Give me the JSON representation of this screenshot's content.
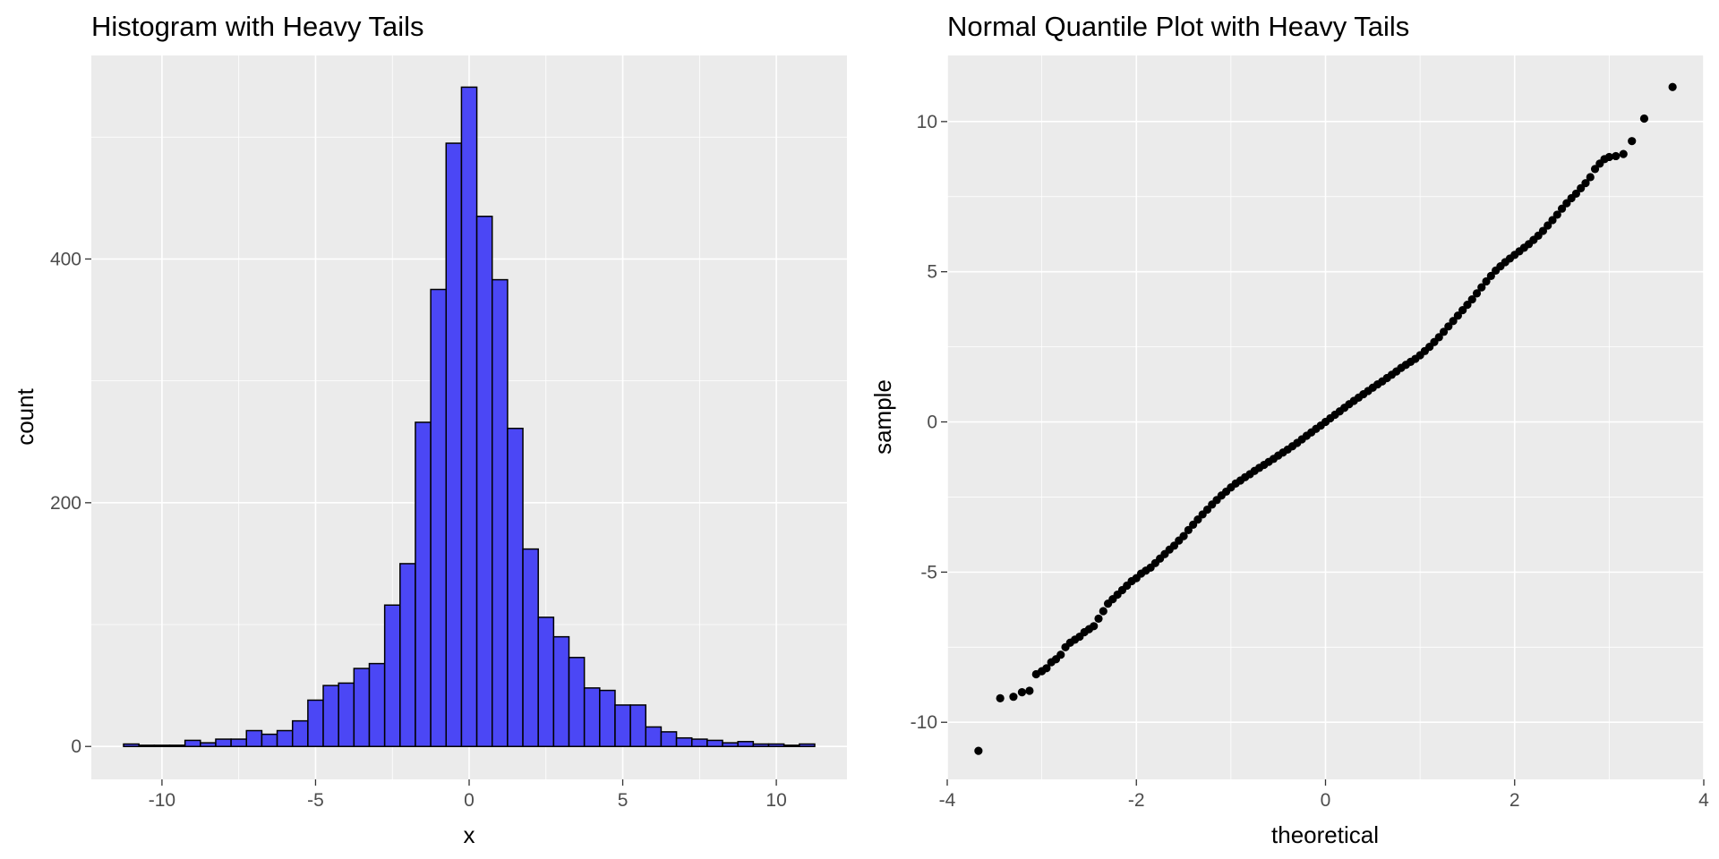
{
  "chart_data": [
    {
      "type": "bar",
      "title": "Histogram with Heavy Tails",
      "xlabel": "x",
      "ylabel": "count",
      "xlim": [
        -12.3,
        12.3
      ],
      "ylim": [
        -27,
        567
      ],
      "x_ticks": [
        -10,
        -5,
        0,
        5,
        10
      ],
      "y_ticks": [
        0,
        200,
        400
      ],
      "grid": true,
      "bar_fill": "#4b47f5",
      "bar_outline": "#000000",
      "bin_width": 0.5,
      "bin_centers": [
        -11,
        -10.5,
        -10,
        -9.5,
        -9,
        -8.5,
        -8,
        -7.5,
        -7,
        -6.5,
        -6,
        -5.5,
        -5,
        -4.5,
        -4,
        -3.5,
        -3,
        -2.5,
        -2,
        -1.5,
        -1,
        -0.5,
        0,
        0.5,
        1,
        1.5,
        2,
        2.5,
        3,
        3.5,
        4,
        4.5,
        5,
        5.5,
        6,
        6.5,
        7,
        7.5,
        8,
        8.5,
        9,
        9.5,
        10,
        10.5,
        11
      ],
      "values": [
        2,
        1,
        1,
        1,
        5,
        3,
        6,
        6,
        13,
        10,
        13,
        21,
        38,
        50,
        52,
        64,
        68,
        116,
        150,
        266,
        375,
        495,
        541,
        435,
        383,
        261,
        162,
        106,
        90,
        73,
        48,
        46,
        34,
        34,
        16,
        12,
        7,
        6,
        5,
        3,
        4,
        2,
        2,
        1,
        2
      ]
    },
    {
      "type": "scatter",
      "title": "Normal Quantile Plot with Heavy Tails",
      "xlabel": "theoretical",
      "ylabel": "sample",
      "xlim": [
        -4,
        4
      ],
      "ylim": [
        -11.9,
        12.2
      ],
      "x_ticks": [
        -4,
        -2,
        0,
        2,
        4
      ],
      "y_ticks": [
        -10,
        -5,
        0,
        5,
        10
      ],
      "grid": true,
      "point_color": "#000000",
      "points": [
        [
          -3.67,
          -10.95
        ],
        [
          -3.44,
          -9.2
        ],
        [
          -3.3,
          -9.15
        ],
        [
          -3.21,
          -9.0
        ],
        [
          -3.13,
          -8.95
        ],
        [
          -3.06,
          -8.4
        ],
        [
          -3.0,
          -8.3
        ],
        [
          -2.95,
          -8.2
        ],
        [
          -2.9,
          -8.0
        ],
        [
          -2.85,
          -7.9
        ],
        [
          -2.8,
          -7.75
        ],
        [
          -2.75,
          -7.5
        ],
        [
          -2.7,
          -7.35
        ],
        [
          -2.65,
          -7.25
        ],
        [
          -2.6,
          -7.15
        ],
        [
          -2.55,
          -7.0
        ],
        [
          -2.5,
          -6.9
        ],
        [
          -2.45,
          -6.8
        ],
        [
          -2.4,
          -6.55
        ],
        [
          -2.35,
          -6.3
        ],
        [
          -2.3,
          -6.05
        ],
        [
          -2.25,
          -5.9
        ],
        [
          -2.2,
          -5.75
        ],
        [
          -2.15,
          -5.6
        ],
        [
          -2.1,
          -5.45
        ],
        [
          -2.05,
          -5.3
        ],
        [
          -2.0,
          -5.2
        ],
        [
          -1.95,
          -5.05
        ],
        [
          -1.9,
          -4.95
        ],
        [
          -1.85,
          -4.85
        ],
        [
          -1.8,
          -4.7
        ],
        [
          -1.75,
          -4.55
        ],
        [
          -1.7,
          -4.4
        ],
        [
          -1.65,
          -4.25
        ],
        [
          -1.6,
          -4.12
        ],
        [
          -1.55,
          -3.95
        ],
        [
          -1.5,
          -3.8
        ],
        [
          -1.45,
          -3.6
        ],
        [
          -1.4,
          -3.42
        ],
        [
          -1.35,
          -3.25
        ],
        [
          -1.3,
          -3.08
        ],
        [
          -1.25,
          -2.92
        ],
        [
          -1.2,
          -2.75
        ],
        [
          -1.15,
          -2.6
        ],
        [
          -1.1,
          -2.45
        ],
        [
          -1.05,
          -2.32
        ],
        [
          -1.0,
          -2.18
        ],
        [
          -0.95,
          -2.05
        ],
        [
          -0.9,
          -1.95
        ],
        [
          -0.85,
          -1.84
        ],
        [
          -0.8,
          -1.74
        ],
        [
          -0.75,
          -1.63
        ],
        [
          -0.7,
          -1.53
        ],
        [
          -0.65,
          -1.43
        ],
        [
          -0.6,
          -1.33
        ],
        [
          -0.55,
          -1.23
        ],
        [
          -0.5,
          -1.12
        ],
        [
          -0.45,
          -1.02
        ],
        [
          -0.4,
          -0.92
        ],
        [
          -0.35,
          -0.81
        ],
        [
          -0.3,
          -0.7
        ],
        [
          -0.25,
          -0.58
        ],
        [
          -0.2,
          -0.46
        ],
        [
          -0.15,
          -0.35
        ],
        [
          -0.1,
          -0.23
        ],
        [
          -0.05,
          -0.12
        ],
        [
          0.0,
          0.0
        ],
        [
          0.05,
          0.12
        ],
        [
          0.1,
          0.24
        ],
        [
          0.15,
          0.35
        ],
        [
          0.2,
          0.47
        ],
        [
          0.25,
          0.59
        ],
        [
          0.3,
          0.7
        ],
        [
          0.35,
          0.81
        ],
        [
          0.4,
          0.92
        ],
        [
          0.45,
          1.03
        ],
        [
          0.5,
          1.14
        ],
        [
          0.55,
          1.25
        ],
        [
          0.6,
          1.35
        ],
        [
          0.65,
          1.46
        ],
        [
          0.7,
          1.57
        ],
        [
          0.75,
          1.68
        ],
        [
          0.8,
          1.8
        ],
        [
          0.85,
          1.9
        ],
        [
          0.9,
          2.0
        ],
        [
          0.95,
          2.1
        ],
        [
          1.0,
          2.22
        ],
        [
          1.05,
          2.36
        ],
        [
          1.1,
          2.5
        ],
        [
          1.15,
          2.66
        ],
        [
          1.2,
          2.82
        ],
        [
          1.25,
          3.0
        ],
        [
          1.3,
          3.18
        ],
        [
          1.35,
          3.36
        ],
        [
          1.4,
          3.54
        ],
        [
          1.45,
          3.72
        ],
        [
          1.5,
          3.9
        ],
        [
          1.55,
          4.08
        ],
        [
          1.6,
          4.28
        ],
        [
          1.65,
          4.48
        ],
        [
          1.7,
          4.68
        ],
        [
          1.75,
          4.86
        ],
        [
          1.8,
          5.04
        ],
        [
          1.85,
          5.18
        ],
        [
          1.9,
          5.32
        ],
        [
          1.95,
          5.44
        ],
        [
          2.0,
          5.56
        ],
        [
          2.05,
          5.68
        ],
        [
          2.1,
          5.8
        ],
        [
          2.15,
          5.92
        ],
        [
          2.2,
          6.06
        ],
        [
          2.25,
          6.2
        ],
        [
          2.3,
          6.36
        ],
        [
          2.35,
          6.54
        ],
        [
          2.4,
          6.72
        ],
        [
          2.45,
          6.9
        ],
        [
          2.5,
          7.1
        ],
        [
          2.55,
          7.28
        ],
        [
          2.6,
          7.45
        ],
        [
          2.65,
          7.6
        ],
        [
          2.7,
          7.78
        ],
        [
          2.75,
          7.95
        ],
        [
          2.8,
          8.15
        ],
        [
          2.85,
          8.42
        ],
        [
          2.9,
          8.6
        ],
        [
          2.95,
          8.75
        ],
        [
          3.0,
          8.82
        ],
        [
          3.07,
          8.85
        ],
        [
          3.15,
          8.92
        ],
        [
          3.24,
          9.35
        ],
        [
          3.37,
          10.1
        ],
        [
          3.67,
          11.15
        ]
      ]
    }
  ]
}
